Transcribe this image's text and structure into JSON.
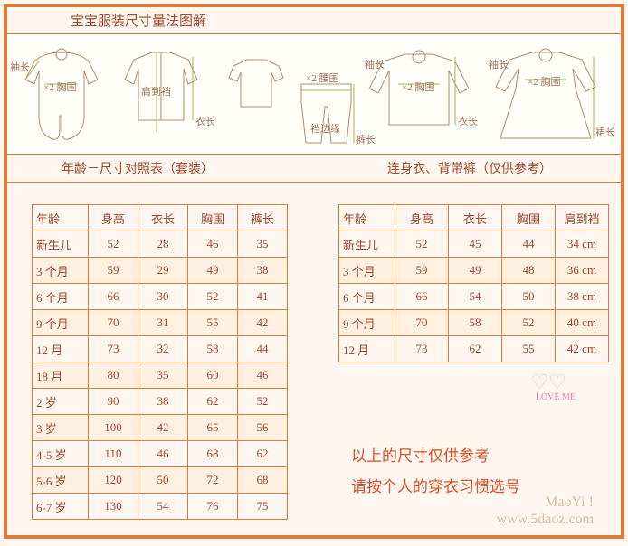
{
  "title": "宝宝服装尺寸量法图解",
  "diagram_labels": {
    "sleeve1": "袖长",
    "x2_1": "×2 胸围",
    "shoulder": "肩到裆",
    "length1": "衣长",
    "waist": "×2 腰围",
    "crotch": "裆边缘",
    "pants": "裤长",
    "sleeve2": "袖长",
    "x2_2": "×2 胸围",
    "length2": "衣长",
    "sleeve3": "袖长",
    "x2_3": "×2 胸围",
    "skirt": "裙长"
  },
  "subhead_left": "年龄－尺寸对照表（套装）",
  "subhead_right": "连身衣、背带裤（仅供参考）",
  "table1": {
    "headers": [
      "年龄",
      "身高",
      "衣长",
      "胸围",
      "裤长"
    ],
    "rows": [
      [
        "新生儿",
        "52",
        "28",
        "46",
        "35"
      ],
      [
        "3 个月",
        "59",
        "29",
        "49",
        "38"
      ],
      [
        "6 个月",
        "66",
        "30",
        "52",
        "41"
      ],
      [
        "9 个月",
        "70",
        "31",
        "55",
        "42"
      ],
      [
        "12 月",
        "73",
        "32",
        "58",
        "44"
      ],
      [
        "18 月",
        "80",
        "35",
        "60",
        "46"
      ],
      [
        "2 岁",
        "90",
        "38",
        "62",
        "52"
      ],
      [
        "3 岁",
        "100",
        "42",
        "65",
        "56"
      ],
      [
        "4-5 岁",
        "110",
        "46",
        "68",
        "62"
      ],
      [
        "5-6 岁",
        "120",
        "50",
        "72",
        "68"
      ],
      [
        "6-7 岁",
        "130",
        "54",
        "76",
        "75"
      ]
    ]
  },
  "table2": {
    "headers": [
      "年龄",
      "身高",
      "衣长",
      "胸围",
      "肩到裆"
    ],
    "rows": [
      [
        "新生儿",
        "52",
        "45",
        "44",
        "34 cm"
      ],
      [
        "3 个月",
        "59",
        "49",
        "48",
        "36 cm"
      ],
      [
        "6 个月",
        "66",
        "54",
        "50",
        "38 cm"
      ],
      [
        "9 个月",
        "70",
        "58",
        "52",
        "40 cm"
      ],
      [
        "12  月",
        "73",
        "62",
        "55",
        "42 cm"
      ]
    ]
  },
  "note_line1": "以上的尺寸仅供参考",
  "note_line2": "请按个人的穿衣习惯选号",
  "loveme_text": "LOVE ME",
  "watermark_line1": "MaoYi !",
  "watermark_line2": "www.5daoz.com",
  "colors": {
    "border": "#e07b3a",
    "bg": "#fff7ef",
    "text": "#a0482d",
    "stripe": "#fff0df"
  }
}
